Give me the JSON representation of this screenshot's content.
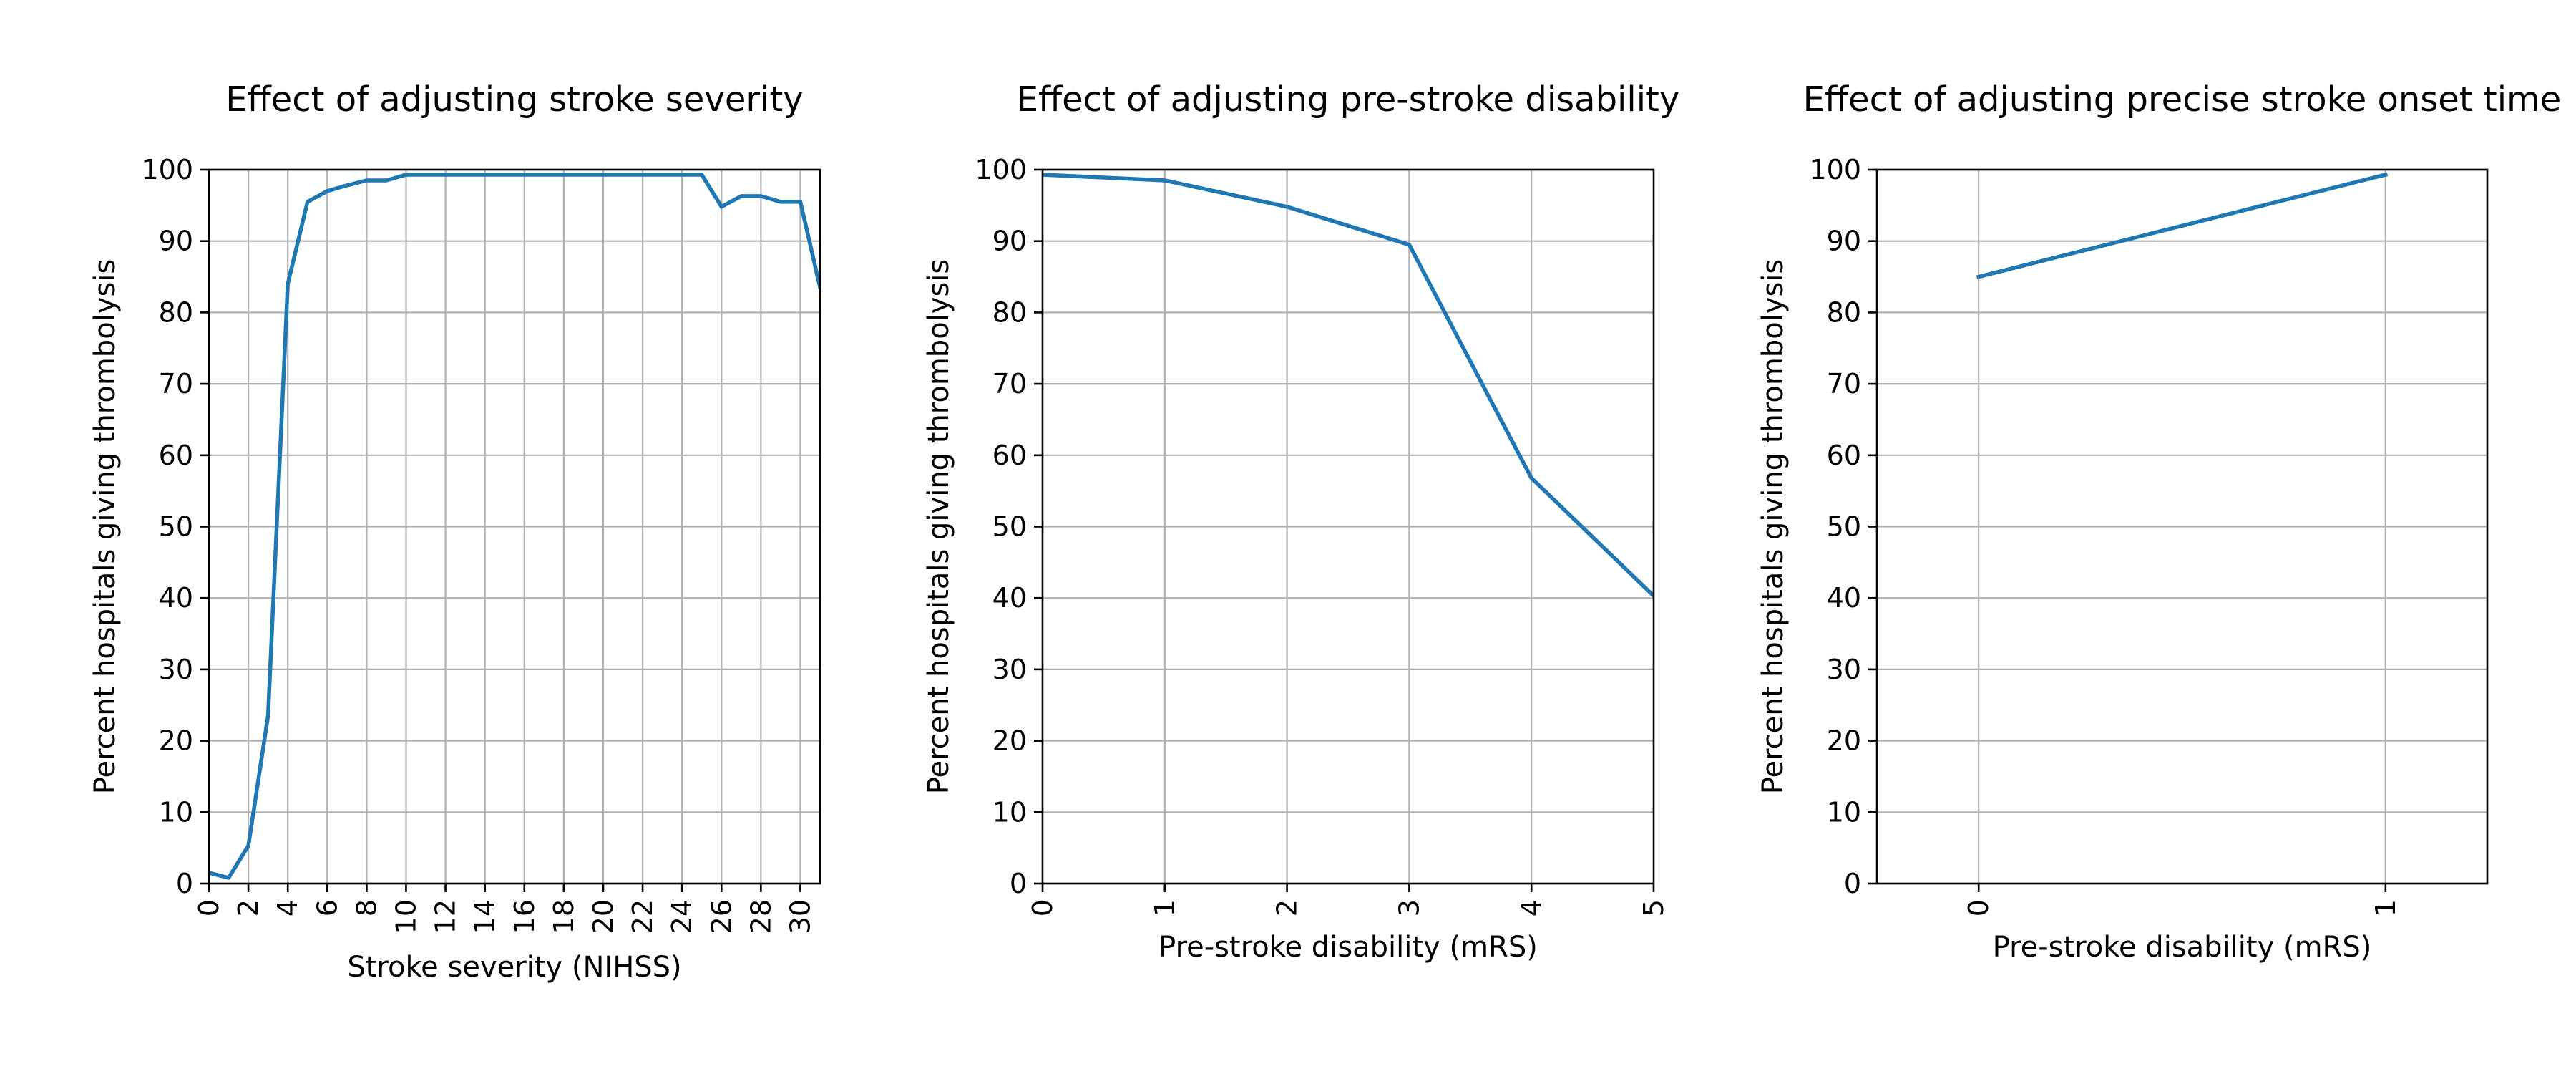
{
  "chart_data": [
    {
      "type": "line",
      "title": "Effect of adjusting stroke severity",
      "xlabel": "Stroke severity (NIHSS)",
      "ylabel": "Percent hospitals giving thrombolysis",
      "xlim": [
        0,
        31
      ],
      "ylim": [
        0,
        100
      ],
      "xticks": [
        0,
        2,
        4,
        6,
        8,
        10,
        12,
        14,
        16,
        18,
        20,
        22,
        24,
        26,
        28,
        30
      ],
      "yticks": [
        0,
        10,
        20,
        30,
        40,
        50,
        60,
        70,
        80,
        90,
        100
      ],
      "tick_rotation_x": "vertical",
      "grid": true,
      "color": "#1f77b4",
      "x": [
        0,
        1,
        2,
        3,
        4,
        5,
        6,
        7,
        8,
        9,
        10,
        11,
        12,
        13,
        14,
        15,
        16,
        17,
        18,
        19,
        20,
        21,
        22,
        23,
        24,
        25,
        26,
        27,
        28,
        29,
        30,
        31
      ],
      "y": [
        1.5,
        0.8,
        5.3,
        23.5,
        84,
        95.5,
        97,
        97.8,
        98.5,
        98.5,
        99.3,
        99.3,
        99.3,
        99.3,
        99.3,
        99.3,
        99.3,
        99.3,
        99.3,
        99.3,
        99.3,
        99.3,
        99.3,
        99.3,
        99.3,
        99.3,
        94.8,
        96.3,
        96.3,
        95.5,
        95.5,
        83.5
      ]
    },
    {
      "type": "line",
      "title": "Effect of adjusting pre-stroke disability",
      "xlabel": "Pre-stroke disability (mRS)",
      "ylabel": "Percent hospitals giving thrombolysis",
      "xlim": [
        0,
        5
      ],
      "ylim": [
        0,
        100
      ],
      "xticks": [
        0,
        1,
        2,
        3,
        4,
        5
      ],
      "yticks": [
        0,
        10,
        20,
        30,
        40,
        50,
        60,
        70,
        80,
        90,
        100
      ],
      "tick_rotation_x": "vertical",
      "grid": true,
      "color": "#1f77b4",
      "x": [
        0,
        1,
        2,
        3,
        4,
        5
      ],
      "y": [
        99.3,
        98.5,
        94.8,
        89.5,
        56.8,
        40.3
      ]
    },
    {
      "type": "line",
      "title": "Effect of adjusting precise stroke onset time",
      "xlabel": "Pre-stroke disability (mRS)",
      "ylabel": "Percent hospitals giving thrombolysis",
      "xlim": [
        -0.25,
        1.25
      ],
      "ylim": [
        0,
        100
      ],
      "xticks": [
        0,
        1
      ],
      "yticks": [
        0,
        10,
        20,
        30,
        40,
        50,
        60,
        70,
        80,
        90,
        100
      ],
      "tick_rotation_x": "vertical",
      "grid": true,
      "color": "#1f77b4",
      "x": [
        0,
        1
      ],
      "y": [
        85,
        99.3
      ]
    }
  ]
}
